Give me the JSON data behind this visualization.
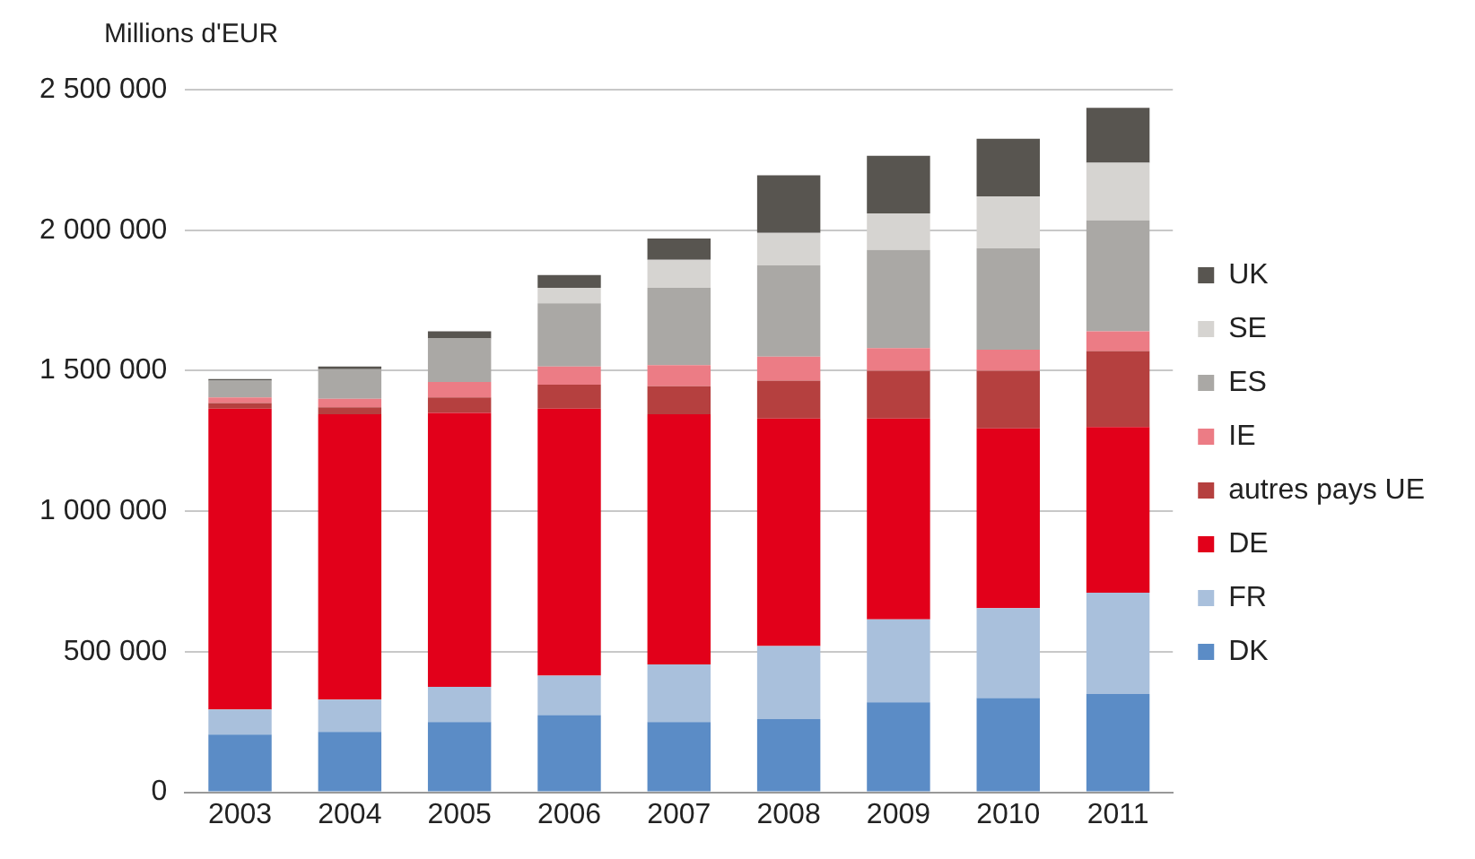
{
  "chart_data": {
    "type": "bar",
    "stacked": true,
    "ylabel": "Millions d'EUR",
    "categories": [
      "2003",
      "2004",
      "2005",
      "2006",
      "2007",
      "2008",
      "2009",
      "2010",
      "2011"
    ],
    "series": [
      {
        "name": "DK",
        "color": "#5b8cc6",
        "values": [
          205000,
          215000,
          250000,
          275000,
          250000,
          260000,
          320000,
          335000,
          350000
        ]
      },
      {
        "name": "FR",
        "color": "#a9c0dc",
        "values": [
          90000,
          115000,
          125000,
          140000,
          205000,
          260000,
          295000,
          320000,
          360000
        ]
      },
      {
        "name": "DE",
        "color": "#e2001a",
        "values": [
          1070000,
          1015000,
          975000,
          950000,
          890000,
          810000,
          715000,
          640000,
          590000
        ]
      },
      {
        "name": "autres pays UE",
        "color": "#b5403f",
        "values": [
          20000,
          25000,
          55000,
          85000,
          100000,
          135000,
          170000,
          205000,
          270000
        ]
      },
      {
        "name": "IE",
        "color": "#ec7c85",
        "values": [
          20000,
          30000,
          55000,
          65000,
          75000,
          85000,
          80000,
          75000,
          70000
        ]
      },
      {
        "name": "ES",
        "color": "#aaa8a5",
        "values": [
          60000,
          105000,
          155000,
          225000,
          275000,
          325000,
          350000,
          360000,
          395000
        ]
      },
      {
        "name": "SE",
        "color": "#d6d4d1",
        "values": [
          null,
          null,
          null,
          55000,
          100000,
          115000,
          130000,
          185000,
          205000
        ]
      },
      {
        "name": "UK",
        "color": "#585550",
        "values": [
          5000,
          10000,
          25000,
          45000,
          75000,
          205000,
          205000,
          205000,
          195000
        ]
      }
    ],
    "ylim": [
      0,
      2500000
    ],
    "yticks": [
      {
        "value": 0,
        "label": "0"
      },
      {
        "value": 500000,
        "label": "500 000"
      },
      {
        "value": 1000000,
        "label": "1 000 000"
      },
      {
        "value": 1500000,
        "label": "1 500 000"
      },
      {
        "value": 2000000,
        "label": "2 000 000"
      },
      {
        "value": 2500000,
        "label": "2 500 000"
      }
    ],
    "grid": "y",
    "legend": "right"
  }
}
